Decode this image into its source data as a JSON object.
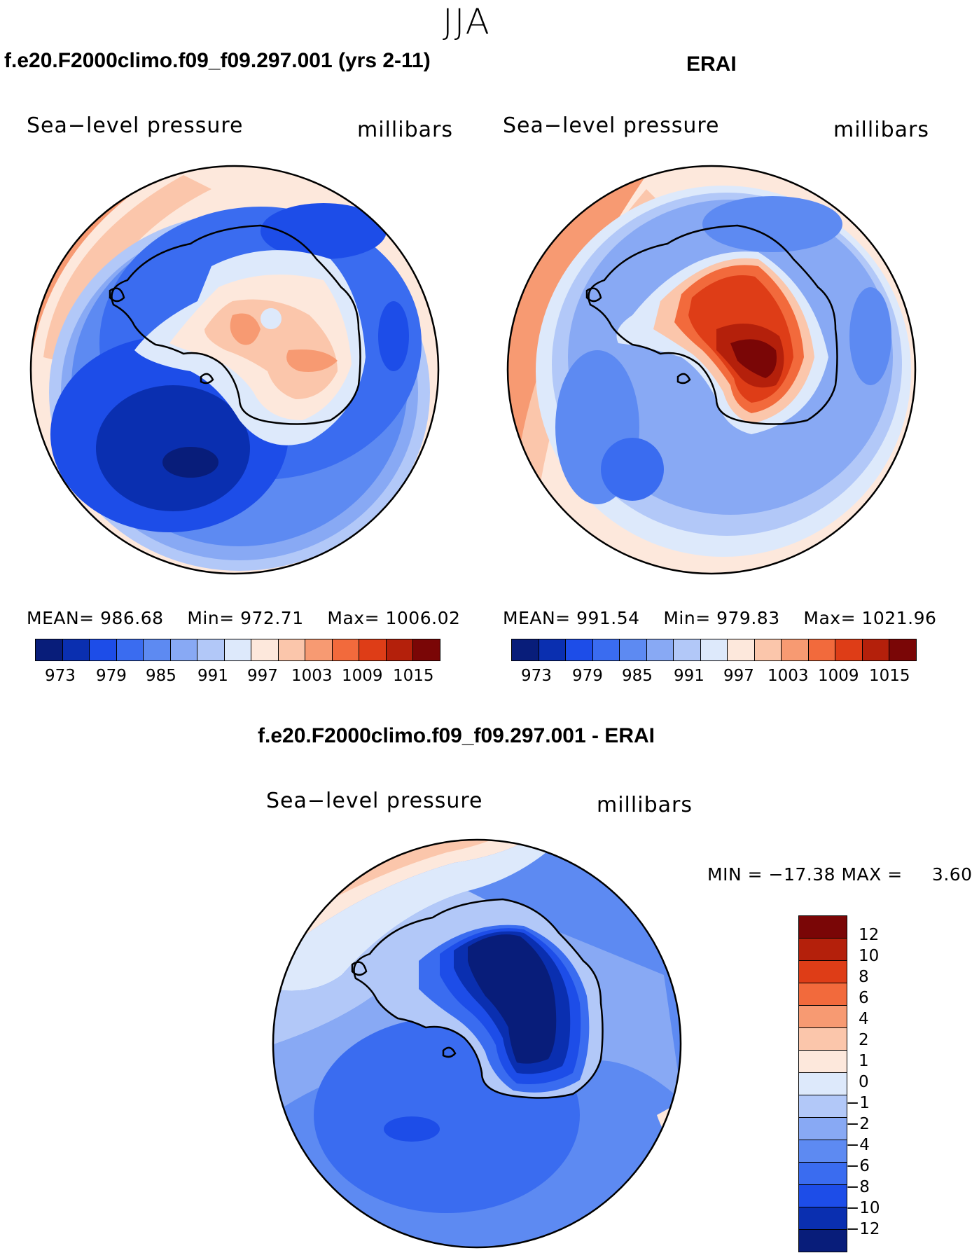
{
  "season": "JJA",
  "panels": {
    "model": {
      "title": "f.e20.F2000climo.f09_f09.297.001 (yrs 2-11)",
      "variable": "Sea−level  pressure",
      "units": "millibars",
      "stats": {
        "mean_label": "MEAN=",
        "mean": "986.68",
        "min_label": "Min=",
        "min": "972.71",
        "max_label": "Max=",
        "max": "1006.02"
      }
    },
    "obs": {
      "title": "ERAI",
      "variable": "Sea−level  pressure",
      "units": "millibars",
      "stats": {
        "mean_label": "MEAN=",
        "mean": "991.54",
        "min_label": "Min=",
        "min": "979.83",
        "max_label": "Max=",
        "max": "1021.96"
      }
    },
    "diff": {
      "title": "f.e20.F2000climo.f09_f09.297.001 - ERAI",
      "variable": "Sea−level  pressure",
      "units": "millibars",
      "minmax": {
        "min_label": "MIN =",
        "min": "−17.38",
        "max_label": "MAX =",
        "max": "3.60"
      }
    }
  },
  "colorbar_abs": {
    "colors": [
      "#081d7a",
      "#0a2fb0",
      "#1d4de8",
      "#3a6cf0",
      "#5d8af2",
      "#88a9f4",
      "#b2c8f8",
      "#dde9fb",
      "#fde8dc",
      "#fbc6ab",
      "#f79a72",
      "#f26a3c",
      "#de3d17",
      "#b4200b",
      "#7a0606"
    ],
    "ticks": [
      "973",
      "979",
      "985",
      "991",
      "997",
      "1003",
      "1009",
      "1015"
    ]
  },
  "colorbar_diff": {
    "colors": [
      "#7a0606",
      "#b4200b",
      "#de3d17",
      "#f26a3c",
      "#f79a72",
      "#fbc6ab",
      "#fde8dc",
      "#dde9fb",
      "#b2c8f8",
      "#88a9f4",
      "#5d8af2",
      "#3a6cf0",
      "#1d4de8",
      "#0a2fb0",
      "#081d7a"
    ],
    "ticks": [
      "12",
      "10",
      "8",
      "6",
      "4",
      "2",
      "1",
      "0",
      "−1",
      "−2",
      "−4",
      "−6",
      "−8",
      "−10",
      "−12"
    ]
  }
}
